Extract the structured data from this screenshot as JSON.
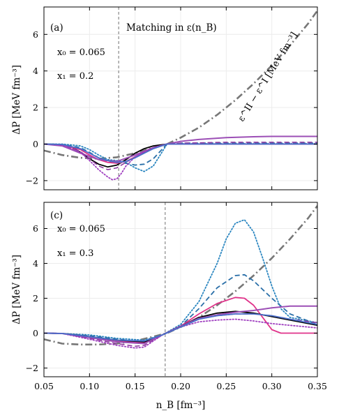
{
  "chart_data": [
    {
      "type": "line",
      "panel_label": "(a)",
      "annotation": "Matching in ε(n_B)",
      "params": [
        "x₀ = 0.065",
        "x₁ = 0.2"
      ],
      "curve_label": "ε^II − ε^I [MeV fm⁻³]",
      "ylabel": "ΔP [MeV fm⁻³]",
      "xlabel": "",
      "xlim": [
        0.05,
        0.35
      ],
      "ylim": [
        -2.5,
        7.5
      ],
      "yticks": [
        -2,
        0,
        2,
        4,
        6
      ],
      "grid": true,
      "vline_x": 0.132,
      "series": [
        {
          "style": "dashdot",
          "color": "#777777",
          "width": 2.6,
          "x": [
            0.05,
            0.07,
            0.09,
            0.11,
            0.13,
            0.15,
            0.17,
            0.185,
            0.2,
            0.22,
            0.24,
            0.26,
            0.28,
            0.3,
            0.32,
            0.34,
            0.35
          ],
          "y": [
            -0.35,
            -0.6,
            -0.75,
            -0.8,
            -0.72,
            -0.5,
            -0.2,
            0.0,
            0.35,
            0.9,
            1.6,
            2.4,
            3.3,
            4.3,
            5.4,
            6.6,
            7.3
          ]
        },
        {
          "style": "solid",
          "color": "#000000",
          "width": 1.8,
          "x": [
            0.05,
            0.07,
            0.08,
            0.09,
            0.1,
            0.11,
            0.12,
            0.13,
            0.14,
            0.15,
            0.16,
            0.17,
            0.185,
            0.2,
            0.25,
            0.3,
            0.35
          ],
          "y": [
            0,
            -0.02,
            -0.15,
            -0.45,
            -0.8,
            -1.1,
            -1.25,
            -1.15,
            -0.85,
            -0.5,
            -0.25,
            -0.1,
            0.0,
            0.0,
            0.0,
            0.0,
            0.0
          ]
        },
        {
          "style": "dotted",
          "color": "#2a86c0",
          "width": 1.8,
          "x": [
            0.05,
            0.07,
            0.09,
            0.1,
            0.11,
            0.12,
            0.13,
            0.14,
            0.15,
            0.16,
            0.17,
            0.18,
            0.185,
            0.2,
            0.25,
            0.3,
            0.35
          ],
          "y": [
            0,
            0,
            -0.1,
            -0.3,
            -0.6,
            -0.85,
            -0.9,
            -1.0,
            -1.3,
            -1.5,
            -1.2,
            -0.4,
            0.0,
            0.02,
            0.02,
            0.02,
            0.02
          ]
        },
        {
          "style": "dashed",
          "color": "#2a6fa8",
          "width": 1.8,
          "x": [
            0.05,
            0.07,
            0.09,
            0.1,
            0.11,
            0.12,
            0.13,
            0.14,
            0.15,
            0.16,
            0.17,
            0.185,
            0.2,
            0.25,
            0.3,
            0.35
          ],
          "y": [
            0,
            -0.02,
            -0.2,
            -0.45,
            -0.75,
            -0.95,
            -1.0,
            -1.05,
            -1.15,
            -1.1,
            -0.8,
            0.0,
            0.05,
            0.05,
            0.05,
            0.05
          ]
        },
        {
          "style": "solid",
          "color": "#e0338a",
          "width": 1.8,
          "x": [
            0.05,
            0.07,
            0.09,
            0.1,
            0.11,
            0.12,
            0.13,
            0.14,
            0.15,
            0.16,
            0.17,
            0.185,
            0.2,
            0.25,
            0.3,
            0.35
          ],
          "y": [
            0,
            -0.05,
            -0.3,
            -0.6,
            -0.85,
            -1.0,
            -1.05,
            -0.95,
            -0.7,
            -0.45,
            -0.2,
            0.0,
            0.0,
            0.0,
            0.0,
            0.0
          ]
        },
        {
          "style": "solid",
          "color": "#9c4fb6",
          "width": 2.0,
          "x": [
            0.05,
            0.07,
            0.09,
            0.11,
            0.13,
            0.15,
            0.17,
            0.185,
            0.2,
            0.22,
            0.25,
            0.28,
            0.3,
            0.35
          ],
          "y": [
            0,
            -0.1,
            -0.5,
            -0.85,
            -0.95,
            -0.6,
            -0.2,
            0.0,
            0.15,
            0.25,
            0.35,
            0.4,
            0.42,
            0.42
          ]
        },
        {
          "style": "dashed",
          "color": "#8e3ca0",
          "width": 1.6,
          "x": [
            0.05,
            0.07,
            0.09,
            0.1,
            0.11,
            0.12,
            0.13,
            0.14,
            0.15,
            0.16,
            0.17,
            0.185,
            0.2,
            0.25,
            0.3,
            0.35
          ],
          "y": [
            0,
            -0.05,
            -0.4,
            -0.8,
            -1.2,
            -1.4,
            -1.3,
            -1.0,
            -0.7,
            -0.45,
            -0.2,
            0.0,
            0.05,
            0.1,
            0.1,
            0.1
          ]
        },
        {
          "style": "dotted",
          "color": "#a040c0",
          "width": 1.8,
          "x": [
            0.05,
            0.07,
            0.09,
            0.1,
            0.11,
            0.12,
            0.125,
            0.13,
            0.135,
            0.14,
            0.15,
            0.16,
            0.17,
            0.185,
            0.2,
            0.25,
            0.3,
            0.35
          ],
          "y": [
            0,
            -0.05,
            -0.45,
            -0.9,
            -1.4,
            -1.8,
            -1.95,
            -1.9,
            -1.6,
            -1.2,
            -0.7,
            -0.4,
            -0.2,
            0.0,
            0.0,
            0.0,
            0.0,
            0.0
          ]
        },
        {
          "style": "solid",
          "color": "#4a6fc9",
          "width": 1.8,
          "x": [
            0.05,
            0.07,
            0.09,
            0.1,
            0.11,
            0.12,
            0.13,
            0.14,
            0.15,
            0.16,
            0.17,
            0.185,
            0.2,
            0.25,
            0.3,
            0.35
          ],
          "y": [
            0,
            -0.02,
            -0.25,
            -0.5,
            -0.75,
            -0.9,
            -1.0,
            -0.95,
            -0.75,
            -0.5,
            -0.25,
            0.0,
            0.0,
            0.0,
            0.0,
            0.0
          ]
        }
      ]
    },
    {
      "type": "line",
      "panel_label": "(c)",
      "annotation": "",
      "params": [
        "x₀ = 0.065",
        "x₁ = 0.3"
      ],
      "ylabel": "ΔP [MeV fm⁻³]",
      "xlabel": "n_B [fm⁻³]",
      "xlim": [
        0.05,
        0.35
      ],
      "ylim": [
        -2.5,
        7.5
      ],
      "xticks": [
        "0.05",
        "0.10",
        "0.15",
        "0.20",
        "0.25",
        "0.30",
        "0.35"
      ],
      "yticks": [
        -2,
        0,
        2,
        4,
        6
      ],
      "grid": true,
      "vline_x": 0.183,
      "series": [
        {
          "style": "dashdot",
          "color": "#777777",
          "width": 2.6,
          "x": [
            0.05,
            0.07,
            0.09,
            0.11,
            0.13,
            0.15,
            0.17,
            0.185,
            0.2,
            0.22,
            0.24,
            0.26,
            0.28,
            0.3,
            0.32,
            0.34,
            0.35
          ],
          "y": [
            -0.35,
            -0.6,
            -0.65,
            -0.65,
            -0.6,
            -0.45,
            -0.2,
            0.0,
            0.35,
            0.9,
            1.6,
            2.4,
            3.3,
            4.3,
            5.4,
            6.6,
            7.3
          ]
        },
        {
          "style": "dotted",
          "color": "#2a86c0",
          "width": 1.8,
          "x": [
            0.05,
            0.07,
            0.1,
            0.13,
            0.16,
            0.18,
            0.2,
            0.22,
            0.24,
            0.25,
            0.26,
            0.27,
            0.28,
            0.29,
            0.3,
            0.31,
            0.32,
            0.35
          ],
          "y": [
            0,
            -0.02,
            -0.1,
            -0.3,
            -0.4,
            -0.1,
            0.5,
            1.8,
            4.0,
            5.4,
            6.3,
            6.5,
            5.8,
            4.3,
            2.7,
            1.4,
            0.9,
            0.6
          ]
        },
        {
          "style": "dashed",
          "color": "#2a6fa8",
          "width": 1.8,
          "x": [
            0.05,
            0.07,
            0.1,
            0.13,
            0.16,
            0.18,
            0.2,
            0.22,
            0.24,
            0.26,
            0.27,
            0.28,
            0.3,
            0.32,
            0.35
          ],
          "y": [
            0,
            -0.02,
            -0.15,
            -0.35,
            -0.5,
            -0.1,
            0.4,
            1.4,
            2.6,
            3.3,
            3.35,
            3.0,
            2.0,
            1.1,
            0.5
          ]
        },
        {
          "style": "solid",
          "color": "#e0338a",
          "width": 1.8,
          "x": [
            0.05,
            0.07,
            0.1,
            0.13,
            0.16,
            0.18,
            0.2,
            0.22,
            0.24,
            0.26,
            0.27,
            0.28,
            0.29,
            0.3,
            0.31,
            0.35
          ],
          "y": [
            0,
            -0.02,
            -0.2,
            -0.45,
            -0.55,
            -0.1,
            0.4,
            1.1,
            1.7,
            2.05,
            2.0,
            1.6,
            0.9,
            0.2,
            0.0,
            0.0
          ]
        },
        {
          "style": "solid",
          "color": "#000000",
          "width": 1.8,
          "x": [
            0.05,
            0.07,
            0.1,
            0.13,
            0.16,
            0.18,
            0.2,
            0.22,
            0.24,
            0.26,
            0.28,
            0.3,
            0.32,
            0.35
          ],
          "y": [
            0,
            -0.02,
            -0.2,
            -0.4,
            -0.5,
            -0.1,
            0.4,
            0.9,
            1.15,
            1.25,
            1.15,
            0.95,
            0.75,
            0.45
          ]
        },
        {
          "style": "solid",
          "color": "#9c4fb6",
          "width": 2.0,
          "x": [
            0.05,
            0.07,
            0.1,
            0.13,
            0.16,
            0.18,
            0.2,
            0.22,
            0.24,
            0.26,
            0.28,
            0.3,
            0.32,
            0.35
          ],
          "y": [
            0,
            -0.02,
            -0.25,
            -0.5,
            -0.6,
            -0.1,
            0.4,
            0.85,
            1.05,
            1.2,
            1.3,
            1.45,
            1.55,
            1.55
          ]
        },
        {
          "style": "dashed",
          "color": "#8e3ca0",
          "width": 1.6,
          "x": [
            0.05,
            0.07,
            0.1,
            0.13,
            0.15,
            0.16,
            0.18,
            0.2,
            0.22,
            0.24,
            0.26,
            0.28,
            0.3,
            0.32,
            0.35
          ],
          "y": [
            0,
            -0.02,
            -0.3,
            -0.6,
            -0.75,
            -0.7,
            -0.1,
            0.4,
            0.8,
            1.0,
            1.1,
            1.1,
            1.0,
            0.8,
            0.6
          ]
        },
        {
          "style": "dotted",
          "color": "#a040c0",
          "width": 1.8,
          "x": [
            0.05,
            0.07,
            0.1,
            0.13,
            0.15,
            0.16,
            0.18,
            0.2,
            0.22,
            0.24,
            0.26,
            0.28,
            0.3,
            0.32,
            0.35
          ],
          "y": [
            0,
            -0.02,
            -0.35,
            -0.7,
            -0.85,
            -0.8,
            -0.1,
            0.35,
            0.65,
            0.75,
            0.8,
            0.7,
            0.55,
            0.45,
            0.3
          ]
        },
        {
          "style": "solid",
          "color": "#4a6fc9",
          "width": 1.8,
          "x": [
            0.05,
            0.07,
            0.1,
            0.13,
            0.16,
            0.18,
            0.2,
            0.22,
            0.24,
            0.26,
            0.28,
            0.3,
            0.32,
            0.35
          ],
          "y": [
            0,
            -0.02,
            -0.2,
            -0.4,
            -0.45,
            -0.1,
            0.35,
            0.8,
            1.0,
            1.1,
            1.1,
            1.0,
            0.8,
            0.5
          ]
        }
      ]
    }
  ]
}
